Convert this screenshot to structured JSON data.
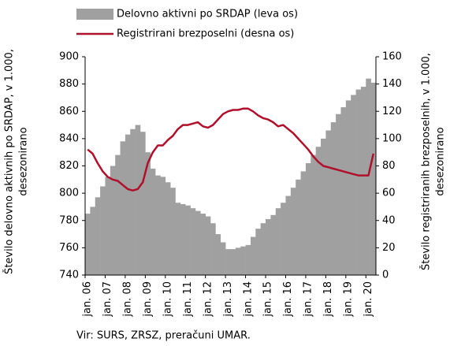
{
  "chart_data": {
    "type": "bar",
    "categories": [
      "jan. 06",
      null,
      null,
      null,
      "jan. 07",
      null,
      null,
      null,
      "jan. 08",
      null,
      null,
      null,
      "jan. 09",
      null,
      null,
      null,
      "jan. 10",
      null,
      null,
      null,
      "jan. 11",
      null,
      null,
      null,
      "jan. 12",
      null,
      null,
      null,
      "jan. 13",
      null,
      null,
      null,
      "jan. 14",
      null,
      null,
      null,
      "jan. 15",
      null,
      null,
      null,
      "jan. 16",
      null,
      null,
      null,
      "jan. 17",
      null,
      null,
      null,
      "jan. 18",
      null,
      null,
      null,
      "jan. 19",
      null,
      null,
      null,
      "jan. 20",
      null
    ],
    "series": [
      {
        "name": "Delovno aktivni po SRDAP (leva os)",
        "color": "#a0a0a0",
        "values": [
          785,
          790,
          797,
          805,
          812,
          820,
          828,
          838,
          843,
          847,
          850,
          845,
          830,
          818,
          813,
          812,
          808,
          804,
          793,
          792,
          791,
          789,
          787,
          785,
          783,
          778,
          770,
          764,
          759,
          759,
          760,
          761,
          762,
          768,
          774,
          778,
          781,
          784,
          789,
          793,
          798,
          804,
          810,
          816,
          822,
          828,
          834,
          840,
          846,
          852,
          858,
          863,
          868,
          872,
          876,
          878,
          884,
          881
        ]
      },
      {
        "name": "Registrirani brezposelni (desna os)",
        "color": "#b0102b",
        "type": "line",
        "axis": "y2",
        "values": [
          92,
          89,
          82,
          76,
          72,
          70,
          69,
          66,
          63,
          62,
          63,
          68,
          82,
          90,
          95,
          95,
          99,
          102,
          107,
          110,
          110,
          111,
          112,
          109,
          108,
          110,
          114,
          118,
          120,
          121,
          121,
          122,
          122,
          120,
          117,
          115,
          114,
          112,
          109,
          110,
          107,
          104,
          100,
          96,
          92,
          87,
          83,
          80,
          79,
          78,
          77,
          76,
          75,
          74,
          73,
          73,
          73,
          89
        ]
      }
    ],
    "ylim": [
      740,
      900
    ],
    "yticks": [
      740,
      760,
      780,
      800,
      820,
      840,
      860,
      880,
      900
    ],
    "y2lim": [
      0,
      160
    ],
    "y2ticks": [
      0,
      20,
      40,
      60,
      80,
      100,
      120,
      140,
      160
    ],
    "y_label": [
      "Število delovno aktivnih po SRDAP, v 1.000,",
      "desezonirano"
    ],
    "y2_label": [
      "Število registriranih  brezposelnih, v 1.000,",
      "desezonirano"
    ],
    "source": "Vir: SURS, ZRSZ, preračuni  UMAR."
  }
}
